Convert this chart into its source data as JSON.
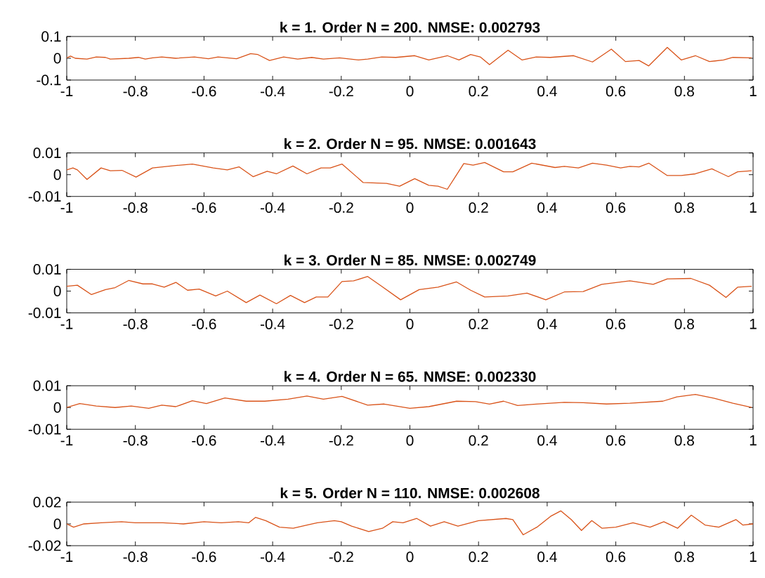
{
  "chart_data": [
    {
      "type": "line",
      "title": "k = 1. Order N = 200. NMSE: 0.002793",
      "xlim": [
        -1,
        1
      ],
      "ylim": [
        -0.1,
        0.1
      ],
      "xticks": [
        -1,
        -0.8,
        -0.6,
        -0.4,
        -0.2,
        0,
        0.2,
        0.4,
        0.6,
        0.8,
        1
      ],
      "yticks": [
        -0.1,
        0,
        0.1
      ],
      "x": [
        -1.0,
        -0.989,
        -0.975,
        -0.941,
        -0.914,
        -0.887,
        -0.873,
        -0.819,
        -0.791,
        -0.771,
        -0.75,
        -0.723,
        -0.682,
        -0.628,
        -0.587,
        -0.559,
        -0.505,
        -0.464,
        -0.443,
        -0.409,
        -0.368,
        -0.327,
        -0.286,
        -0.252,
        -0.205,
        -0.15,
        -0.123,
        -0.082,
        -0.041,
        0.014,
        0.055,
        0.109,
        0.143,
        0.177,
        0.205,
        0.232,
        0.286,
        0.327,
        0.368,
        0.409,
        0.477,
        0.532,
        0.587,
        0.628,
        0.668,
        0.696,
        0.75,
        0.791,
        0.832,
        0.873,
        0.914,
        0.941,
        0.996
      ],
      "series": [
        {
          "color": "#d95319",
          "values": [
            0.002,
            0.01,
            0,
            -0.004,
            0.006,
            0.004,
            -0.004,
            0,
            0.004,
            -0.004,
            0.002,
            0.006,
            0,
            0.006,
            -0.002,
            0.006,
            -0.002,
            0.021,
            0.017,
            -0.01,
            0.006,
            -0.004,
            0.004,
            -0.004,
            0.002,
            -0.008,
            -0.004,
            0.006,
            0.004,
            0.012,
            -0.008,
            0.012,
            -0.008,
            0.017,
            0.006,
            -0.029,
            0.037,
            -0.008,
            0.006,
            0.004,
            0.012,
            -0.017,
            0.042,
            -0.015,
            -0.01,
            -0.035,
            0.05,
            -0.008,
            0.012,
            -0.015,
            -0.008,
            0.004,
            0.002
          ]
        }
      ]
    },
    {
      "type": "line",
      "title": "k = 2. Order N = 95. NMSE: 0.001643",
      "xlim": [
        -1,
        1
      ],
      "ylim": [
        -0.01,
        0.01
      ],
      "xticks": [
        -1,
        -0.8,
        -0.6,
        -0.4,
        -0.2,
        0,
        0.2,
        0.4,
        0.6,
        0.8,
        1
      ],
      "yticks": [
        -0.01,
        0,
        0.01
      ],
      "x": [
        -1.0,
        -0.982,
        -0.969,
        -0.941,
        -0.9,
        -0.873,
        -0.839,
        -0.798,
        -0.75,
        -0.682,
        -0.634,
        -0.573,
        -0.532,
        -0.498,
        -0.457,
        -0.416,
        -0.389,
        -0.341,
        -0.3,
        -0.259,
        -0.232,
        -0.198,
        -0.136,
        -0.068,
        -0.03,
        0.014,
        0.055,
        0.082,
        0.109,
        0.157,
        0.184,
        0.218,
        0.273,
        0.3,
        0.355,
        0.423,
        0.45,
        0.491,
        0.532,
        0.573,
        0.614,
        0.641,
        0.668,
        0.696,
        0.75,
        0.791,
        0.832,
        0.88,
        0.928,
        0.955,
        0.996
      ],
      "series": [
        {
          "color": "#d95319",
          "values": [
            0.0022,
            0.0031,
            0.0022,
            -0.0022,
            0.0031,
            0.0018,
            0.002,
            -0.0011,
            0.0031,
            0.0042,
            0.0049,
            0.0031,
            0.0022,
            0.0036,
            -0.0009,
            0.0016,
            0.0004,
            0.004,
            0.0004,
            0.0031,
            0.0031,
            0.0049,
            -0.0036,
            -0.004,
            -0.0053,
            -0.0018,
            -0.0049,
            -0.0053,
            -0.0067,
            0.0051,
            0.0044,
            0.0056,
            0.0013,
            0.0013,
            0.0053,
            0.0033,
            0.0038,
            0.0031,
            0.0053,
            0.0044,
            0.0031,
            0.0038,
            0.0036,
            0.0053,
            -0.0004,
            -0.0004,
            0.0004,
            0.0027,
            -0.0009,
            0.0013,
            0.0018
          ]
        }
      ]
    },
    {
      "type": "line",
      "title": "k = 3. Order N = 85. NMSE: 0.002749",
      "xlim": [
        -1,
        1
      ],
      "ylim": [
        -0.01,
        0.01
      ],
      "xticks": [
        -1,
        -0.8,
        -0.6,
        -0.4,
        -0.2,
        0,
        0.2,
        0.4,
        0.6,
        0.8,
        1
      ],
      "yticks": [
        -0.01,
        0,
        0.01
      ],
      "x": [
        -1.0,
        -0.969,
        -0.928,
        -0.887,
        -0.859,
        -0.819,
        -0.778,
        -0.75,
        -0.716,
        -0.682,
        -0.648,
        -0.614,
        -0.566,
        -0.532,
        -0.477,
        -0.437,
        -0.389,
        -0.348,
        -0.307,
        -0.273,
        -0.239,
        -0.198,
        -0.164,
        -0.123,
        -0.082,
        -0.027,
        0.027,
        0.082,
        0.136,
        0.177,
        0.218,
        0.286,
        0.341,
        0.396,
        0.45,
        0.505,
        0.559,
        0.641,
        0.709,
        0.75,
        0.819,
        0.873,
        0.921,
        0.955,
        0.996
      ],
      "series": [
        {
          "color": "#d95319",
          "values": [
            0.0022,
            0.0027,
            -0.0016,
            0.0007,
            0.0016,
            0.0049,
            0.0033,
            0.0033,
            0.0018,
            0.004,
            0.0004,
            0.0009,
            -0.0022,
            0,
            -0.0053,
            -0.0018,
            -0.0058,
            -0.002,
            -0.0053,
            -0.0027,
            -0.0027,
            0.0044,
            0.0047,
            0.0067,
            0.0022,
            -0.004,
            0.0007,
            0.0018,
            0.0042,
            0.0004,
            -0.0027,
            -0.0022,
            -0.0009,
            -0.004,
            -0.0004,
            -0.0002,
            0.0031,
            0.0047,
            0.0031,
            0.0056,
            0.0058,
            0.0027,
            -0.0029,
            0.0018,
            0.0022
          ]
        }
      ]
    },
    {
      "type": "line",
      "title": "k = 4. Order N = 65. NMSE: 0.002330",
      "xlim": [
        -1,
        1
      ],
      "ylim": [
        -0.01,
        0.01
      ],
      "xticks": [
        -1,
        -0.8,
        -0.6,
        -0.4,
        -0.2,
        0,
        0.2,
        0.4,
        0.6,
        0.8,
        1
      ],
      "yticks": [
        -0.01,
        0,
        0.01
      ],
      "x": [
        -1.0,
        -0.962,
        -0.914,
        -0.859,
        -0.812,
        -0.761,
        -0.723,
        -0.682,
        -0.634,
        -0.593,
        -0.539,
        -0.477,
        -0.423,
        -0.355,
        -0.3,
        -0.252,
        -0.198,
        -0.123,
        -0.075,
        0.0,
        0.055,
        0.136,
        0.191,
        0.232,
        0.273,
        0.314,
        0.368,
        0.45,
        0.505,
        0.573,
        0.641,
        0.737,
        0.778,
        0.832,
        0.887,
        0.941,
        0.996
      ],
      "series": [
        {
          "color": "#d95319",
          "values": [
            0,
            0.0018,
            0.0007,
            0,
            0.0007,
            -0.0004,
            0.0011,
            0.0004,
            0.0031,
            0.0018,
            0.0044,
            0.0029,
            0.0029,
            0.0038,
            0.0053,
            0.0038,
            0.0051,
            0.0011,
            0.0016,
            -0.0004,
            0.0004,
            0.0029,
            0.0027,
            0.0016,
            0.0029,
            0.0009,
            0.0016,
            0.0024,
            0.0022,
            0.0016,
            0.002,
            0.0029,
            0.0049,
            0.006,
            0.0042,
            0.002,
            0
          ]
        }
      ]
    },
    {
      "type": "line",
      "title": "k = 5. Order N = 110. NMSE: 0.002608",
      "xlim": [
        -1,
        1
      ],
      "ylim": [
        -0.02,
        0.02
      ],
      "xticks": [
        -1,
        -0.8,
        -0.6,
        -0.4,
        -0.2,
        0,
        0.2,
        0.4,
        0.6,
        0.8,
        1
      ],
      "yticks": [
        -0.02,
        0,
        0.02
      ],
      "x": [
        -1,
        -0.98,
        -0.95,
        -0.9,
        -0.84,
        -0.8,
        -0.72,
        -0.66,
        -0.6,
        -0.55,
        -0.5,
        -0.47,
        -0.45,
        -0.42,
        -0.38,
        -0.34,
        -0.3,
        -0.27,
        -0.22,
        -0.2,
        -0.17,
        -0.12,
        -0.08,
        -0.05,
        -0.02,
        0.02,
        0.06,
        0.1,
        0.14,
        0.2,
        0.28,
        0.3,
        0.33,
        0.37,
        0.41,
        0.44,
        0.47,
        0.5,
        0.53,
        0.56,
        0.6,
        0.65,
        0.7,
        0.74,
        0.78,
        0.82,
        0.86,
        0.9,
        0.95,
        0.97,
        1
      ],
      "series": [
        {
          "color": "#d95319",
          "values": [
            0,
            -0.003,
            0,
            0.001,
            0.002,
            0.001,
            0.001,
            0,
            0.002,
            0.001,
            0.002,
            0.001,
            0.006,
            0.003,
            -0.003,
            -0.004,
            -0.001,
            0.001,
            0.003,
            0.002,
            -0.002,
            -0.007,
            -0.004,
            0.002,
            0.001,
            0.005,
            -0.002,
            0.002,
            -0.002,
            0.003,
            0.005,
            0.004,
            -0.01,
            -0.003,
            0.007,
            0.012,
            0.004,
            -0.006,
            0.003,
            -0.004,
            -0.003,
            0.001,
            -0.003,
            0.002,
            -0.004,
            0.008,
            -0.001,
            -0.003,
            0.004,
            -0.001,
            0
          ]
        }
      ]
    }
  ]
}
